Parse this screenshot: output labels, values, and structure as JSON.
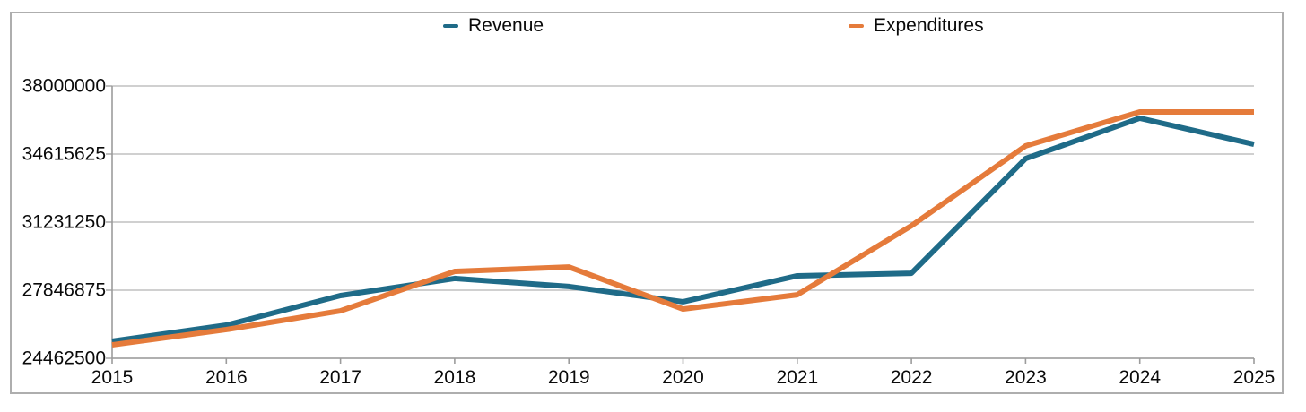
{
  "chart_data": {
    "type": "line",
    "title": "",
    "xlabel": "",
    "ylabel": "",
    "x": [
      2015,
      2016,
      2017,
      2018,
      2019,
      2020,
      2021,
      2022,
      2023,
      2024,
      2025
    ],
    "series": [
      {
        "name": "Revenue",
        "color": "#1f6b88",
        "values": [
          25310000,
          26110000,
          27580000,
          28430000,
          28030000,
          27270000,
          28560000,
          28690000,
          34390000,
          36400000,
          35100000
        ]
      },
      {
        "name": "Expenditures",
        "color": "#e57b3b",
        "values": [
          25130000,
          25890000,
          26820000,
          28780000,
          29000000,
          26910000,
          27620000,
          31050000,
          35020000,
          36710000,
          36710000
        ]
      }
    ],
    "ylim": [
      24462500,
      38000000
    ],
    "yticks": [
      38000000,
      34615625,
      31231250,
      27846875,
      24462500
    ],
    "grid": true,
    "legend_position": "top",
    "gridline_color": "#b4b4b4",
    "axis_color": "#9c9c9c"
  }
}
